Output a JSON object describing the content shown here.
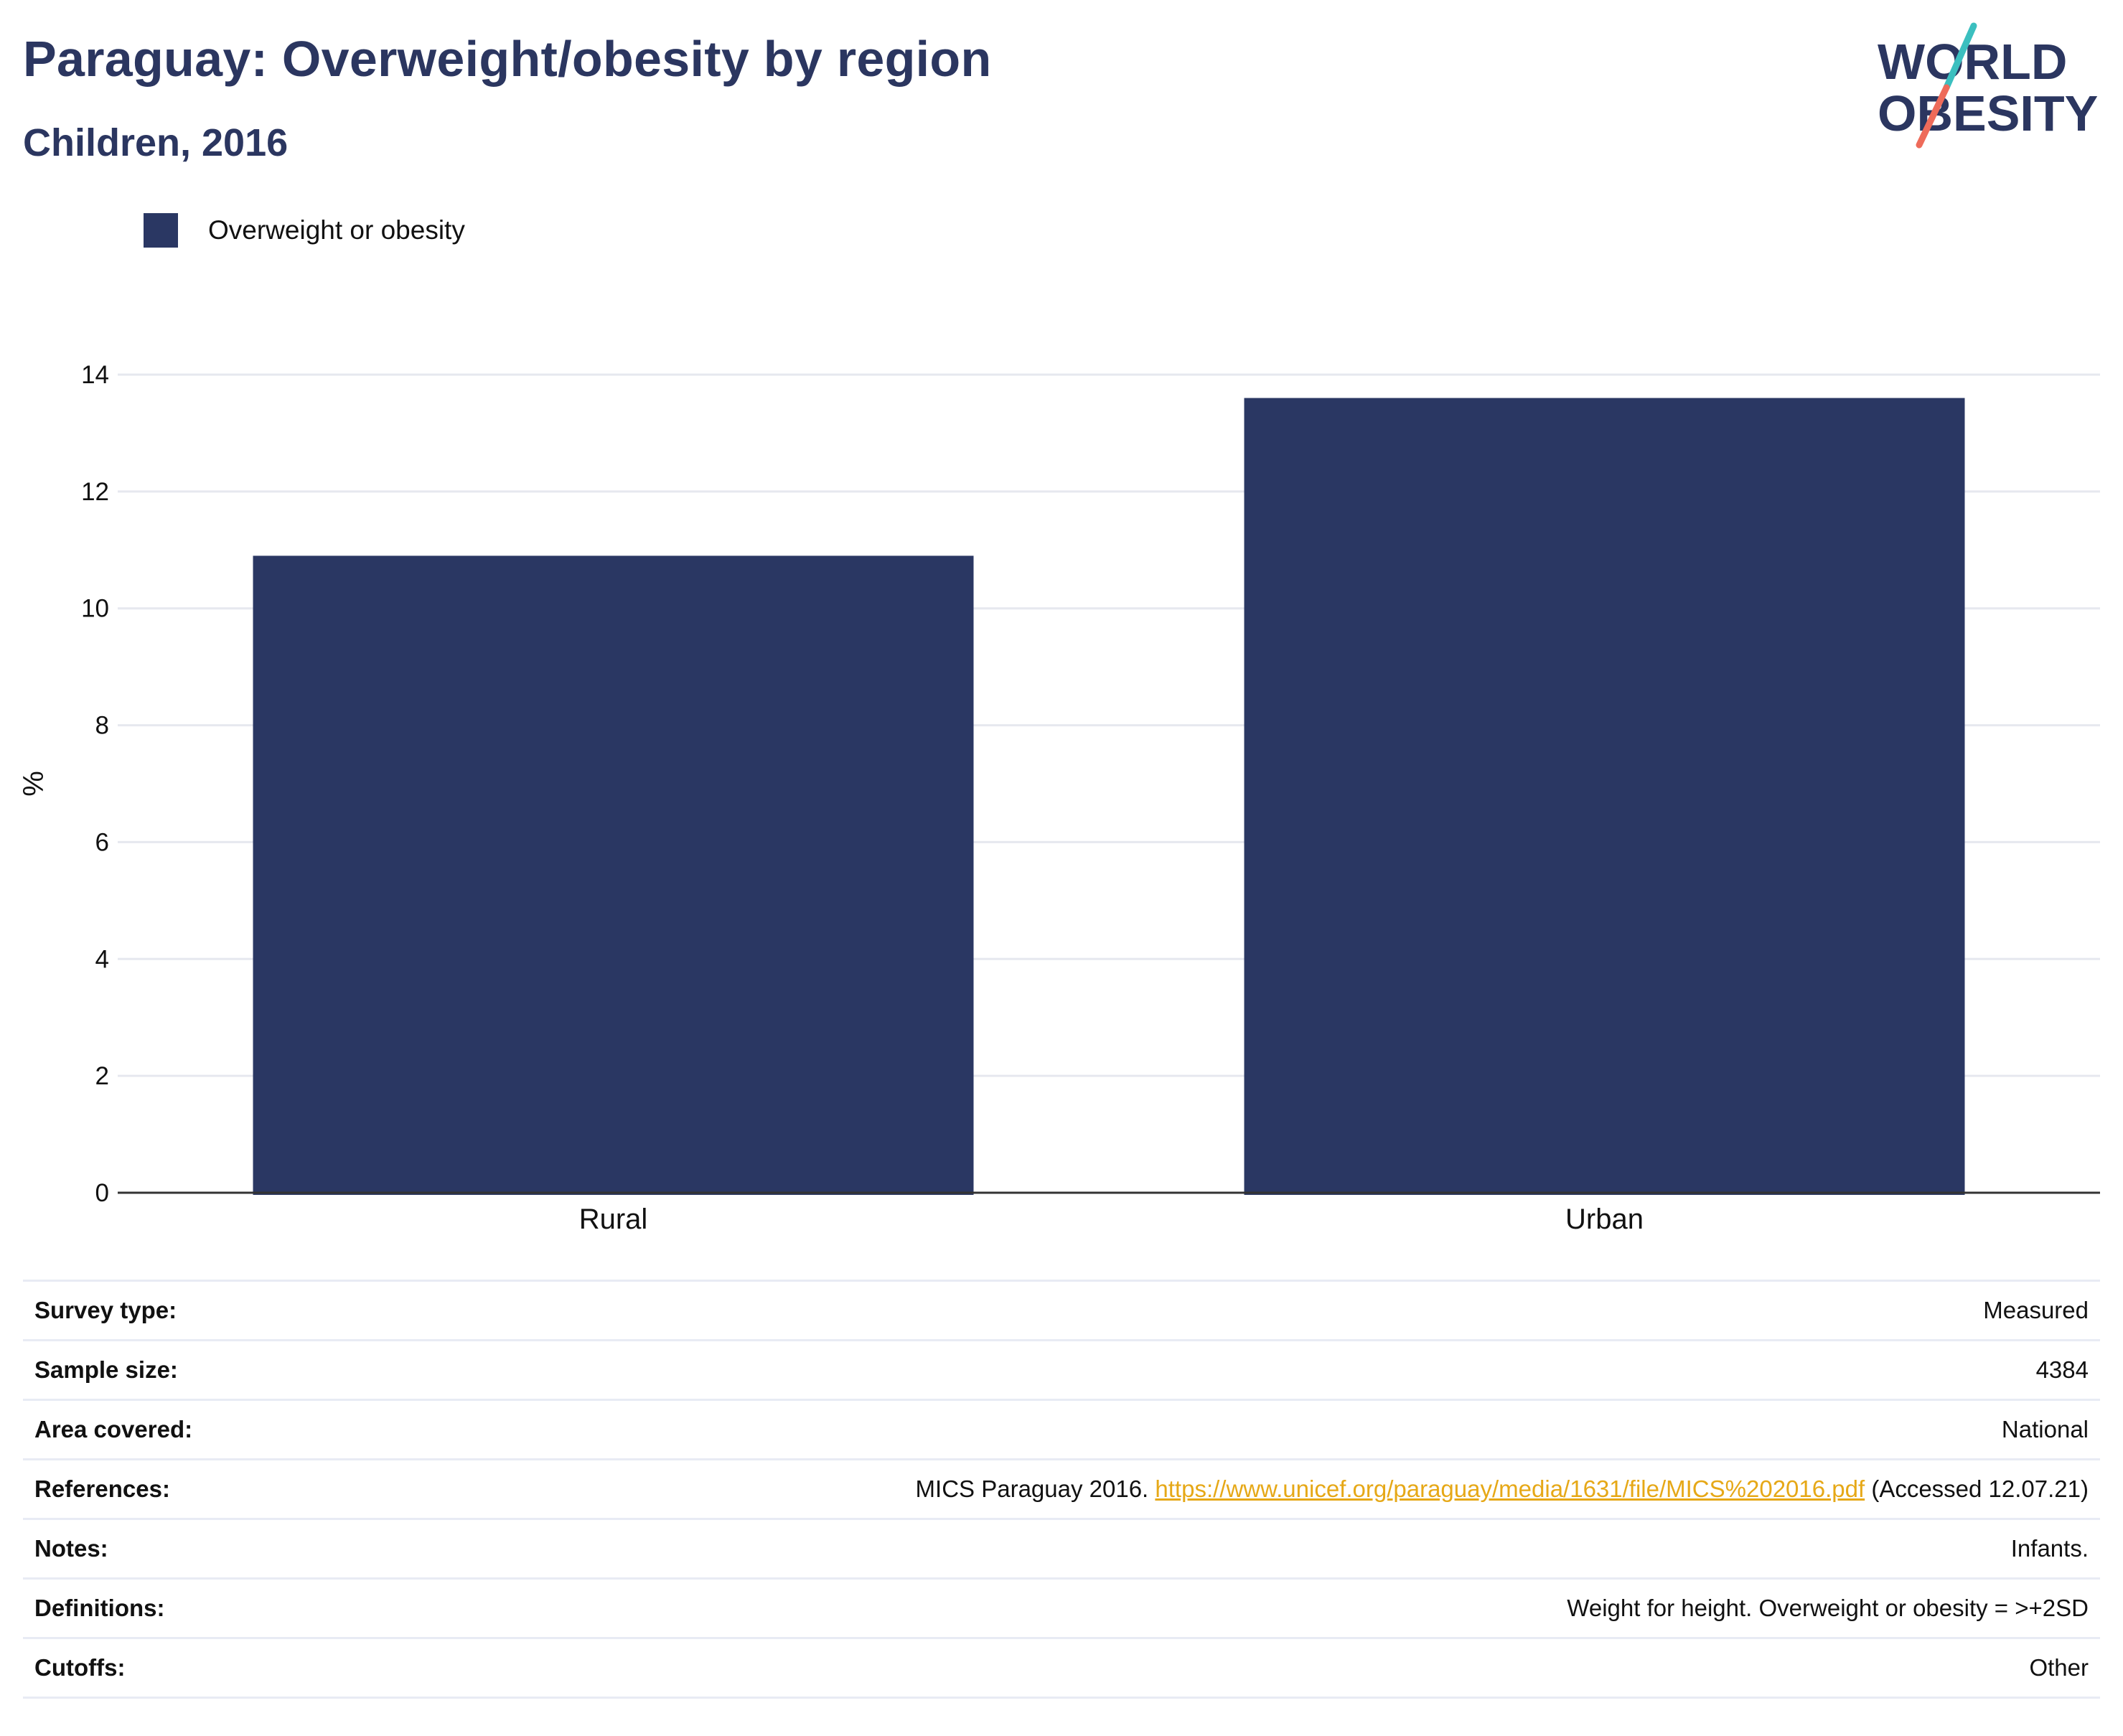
{
  "header": {
    "title": "Paraguay: Overweight/obesity by region",
    "subtitle": "Children, 2016"
  },
  "logo": {
    "line1": "WORLD",
    "line2": "OBESITY",
    "colors": {
      "text": "#2b3660",
      "slash_teal": "#3bbfbf",
      "slash_coral": "#ee6b5a"
    }
  },
  "legend": {
    "label": "Overweight or obesity",
    "color": "#2a3763"
  },
  "chart_data": {
    "type": "bar",
    "categories": [
      "Rural",
      "Urban"
    ],
    "series": [
      {
        "name": "Overweight or obesity",
        "values": [
          10.9,
          13.6
        ],
        "color": "#2a3763"
      }
    ],
    "xlabel": "",
    "ylabel": "%",
    "ylim": [
      0,
      14
    ],
    "yticks": [
      0,
      2,
      4,
      6,
      8,
      10,
      12,
      14
    ],
    "grid": true,
    "legend_position": "top-left"
  },
  "info": {
    "survey_type": {
      "label": "Survey type:",
      "value": "Measured"
    },
    "sample_size": {
      "label": "Sample size:",
      "value": "4384"
    },
    "area_covered": {
      "label": "Area covered:",
      "value": "National"
    },
    "references": {
      "label": "References:",
      "prefix": "MICS Paraguay 2016.",
      "link": "https://www.unicef.org/paraguay/media/1631/file/MICS%202016.pdf",
      "suffix": "(Accessed 12.07.21)"
    },
    "notes": {
      "label": "Notes:",
      "value": "Infants."
    },
    "definitions": {
      "label": "Definitions:",
      "value": "Weight for height. Overweight or obesity = >+2SD"
    },
    "cutoffs": {
      "label": "Cutoffs:",
      "value": "Other"
    }
  }
}
